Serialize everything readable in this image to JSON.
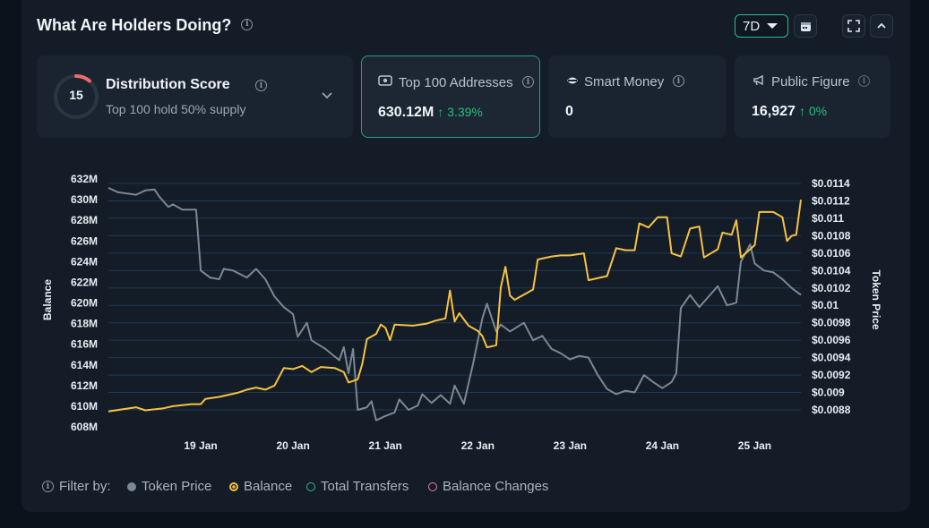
{
  "header": {
    "title": "What Are Holders Doing?",
    "range": "7D"
  },
  "cards": {
    "distribution": {
      "score": "15",
      "title": "Distribution Score",
      "subtitle": "Top 100 hold 50% supply"
    },
    "top100": {
      "label": "Top 100 Addresses",
      "value": "630.12M",
      "change": "3.39%"
    },
    "smart_money": {
      "label": "Smart Money",
      "value": "0"
    },
    "public_figure": {
      "label": "Public Figure",
      "value": "16,927",
      "change": "0%"
    }
  },
  "filters": {
    "label": "Filter by:",
    "items": [
      {
        "label": "Token Price",
        "color": "#7b8794"
      },
      {
        "label": "Balance",
        "color": "#f5c242"
      },
      {
        "label": "Total Transfers",
        "color": "#2fb89a"
      },
      {
        "label": "Balance Changes",
        "color": "#e879a8"
      }
    ]
  },
  "chart_data": {
    "type": "line",
    "x_tick_labels": [
      "19 Jan",
      "20 Jan",
      "21 Jan",
      "22 Jan",
      "23 Jan",
      "24 Jan",
      "25 Jan"
    ],
    "x_range_days": [
      18.0,
      25.5
    ],
    "left_axis": {
      "label": "Balance",
      "ticks": [
        "632M",
        "630M",
        "628M",
        "626M",
        "624M",
        "622M",
        "620M",
        "618M",
        "616M",
        "614M",
        "612M",
        "610M",
        "608M"
      ],
      "range": [
        608,
        632
      ]
    },
    "right_axis": {
      "label": "Token Price",
      "ticks": [
        "$0.0114",
        "$0.0112",
        "$0.011",
        "$0.0108",
        "$0.0106",
        "$0.0104",
        "$0.0102",
        "$0.01",
        "$0.0098",
        "$0.0096",
        "$0.0094",
        "$0.0092",
        "$0.009",
        "$0.0088"
      ],
      "range": [
        0.0088,
        0.0114
      ]
    },
    "series": [
      {
        "name": "Balance",
        "axis": "left",
        "color": "#f5c242",
        "points": [
          [
            18.0,
            609.5
          ],
          [
            18.3,
            609.9
          ],
          [
            18.4,
            609.6
          ],
          [
            18.6,
            609.8
          ],
          [
            18.7,
            610.0
          ],
          [
            18.9,
            610.2
          ],
          [
            19.0,
            610.2
          ],
          [
            19.05,
            610.7
          ],
          [
            19.2,
            610.9
          ],
          [
            19.4,
            611.3
          ],
          [
            19.5,
            611.6
          ],
          [
            19.6,
            611.8
          ],
          [
            19.7,
            611.6
          ],
          [
            19.8,
            612.0
          ],
          [
            19.9,
            613.7
          ],
          [
            20.0,
            613.6
          ],
          [
            20.1,
            613.9
          ],
          [
            20.2,
            613.3
          ],
          [
            20.3,
            613.8
          ],
          [
            20.45,
            613.7
          ],
          [
            20.55,
            613.3
          ],
          [
            20.6,
            612.3
          ],
          [
            20.7,
            612.6
          ],
          [
            20.75,
            614.1
          ],
          [
            20.8,
            616.5
          ],
          [
            20.9,
            617.0
          ],
          [
            20.95,
            617.9
          ],
          [
            21.0,
            617.6
          ],
          [
            21.05,
            616.4
          ],
          [
            21.1,
            617.9
          ],
          [
            21.3,
            617.8
          ],
          [
            21.45,
            618.0
          ],
          [
            21.55,
            618.3
          ],
          [
            21.65,
            618.5
          ],
          [
            21.7,
            621.2
          ],
          [
            21.75,
            618.2
          ],
          [
            21.8,
            619.0
          ],
          [
            21.9,
            617.8
          ],
          [
            22.0,
            617.3
          ],
          [
            22.05,
            616.8
          ],
          [
            22.1,
            615.7
          ],
          [
            22.2,
            615.9
          ],
          [
            22.25,
            621.5
          ],
          [
            22.3,
            623.5
          ],
          [
            22.35,
            620.7
          ],
          [
            22.4,
            620.3
          ],
          [
            22.5,
            620.8
          ],
          [
            22.6,
            621.3
          ],
          [
            22.65,
            624.2
          ],
          [
            22.8,
            624.5
          ],
          [
            22.9,
            624.6
          ],
          [
            23.0,
            624.6
          ],
          [
            23.15,
            624.8
          ],
          [
            23.2,
            622.2
          ],
          [
            23.4,
            622.6
          ],
          [
            23.5,
            625.3
          ],
          [
            23.6,
            625.1
          ],
          [
            23.7,
            625.1
          ],
          [
            23.75,
            627.7
          ],
          [
            23.85,
            627.3
          ],
          [
            23.95,
            628.3
          ],
          [
            24.05,
            628.3
          ],
          [
            24.1,
            624.8
          ],
          [
            24.2,
            624.5
          ],
          [
            24.3,
            627.2
          ],
          [
            24.4,
            627.4
          ],
          [
            24.45,
            624.4
          ],
          [
            24.6,
            625.2
          ],
          [
            24.65,
            626.8
          ],
          [
            24.75,
            626.6
          ],
          [
            24.8,
            628.0
          ],
          [
            24.85,
            624.4
          ],
          [
            25.0,
            625.6
          ],
          [
            25.05,
            628.8
          ],
          [
            25.2,
            628.8
          ],
          [
            25.3,
            628.3
          ],
          [
            25.35,
            626.0
          ],
          [
            25.4,
            626.5
          ],
          [
            25.45,
            626.6
          ],
          [
            25.5,
            630.0
          ]
        ]
      },
      {
        "name": "Token Price",
        "axis": "right",
        "color": "#7b8794",
        "points": [
          [
            18.0,
            0.01135
          ],
          [
            18.1,
            0.0113
          ],
          [
            18.3,
            0.01127
          ],
          [
            18.4,
            0.01132
          ],
          [
            18.5,
            0.01133
          ],
          [
            18.55,
            0.01125
          ],
          [
            18.65,
            0.01113
          ],
          [
            18.7,
            0.01116
          ],
          [
            18.8,
            0.0111
          ],
          [
            18.95,
            0.0111
          ],
          [
            19.0,
            0.0104
          ],
          [
            19.1,
            0.01032
          ],
          [
            19.2,
            0.0103
          ],
          [
            19.25,
            0.01042
          ],
          [
            19.35,
            0.0104
          ],
          [
            19.5,
            0.01032
          ],
          [
            19.6,
            0.01042
          ],
          [
            19.7,
            0.0103
          ],
          [
            19.8,
            0.0101
          ],
          [
            19.9,
            0.00998
          ],
          [
            20.0,
            0.0099
          ],
          [
            20.05,
            0.00964
          ],
          [
            20.15,
            0.0098
          ],
          [
            20.2,
            0.0096
          ],
          [
            20.35,
            0.0095
          ],
          [
            20.5,
            0.00937
          ],
          [
            20.55,
            0.00952
          ],
          [
            20.6,
            0.00922
          ],
          [
            20.65,
            0.0095
          ],
          [
            20.7,
            0.0088
          ],
          [
            20.8,
            0.00883
          ],
          [
            20.85,
            0.0089
          ],
          [
            20.9,
            0.00868
          ],
          [
            21.0,
            0.00873
          ],
          [
            21.1,
            0.00877
          ],
          [
            21.15,
            0.00892
          ],
          [
            21.25,
            0.0088
          ],
          [
            21.35,
            0.00885
          ],
          [
            21.4,
            0.00898
          ],
          [
            21.5,
            0.00888
          ],
          [
            21.6,
            0.00897
          ],
          [
            21.7,
            0.00887
          ],
          [
            21.75,
            0.00908
          ],
          [
            21.85,
            0.00887
          ],
          [
            21.95,
            0.00933
          ],
          [
            22.05,
            0.00985
          ],
          [
            22.1,
            0.01002
          ],
          [
            22.2,
            0.0097
          ],
          [
            22.25,
            0.00978
          ],
          [
            22.35,
            0.0097
          ],
          [
            22.5,
            0.0098
          ],
          [
            22.6,
            0.0096
          ],
          [
            22.7,
            0.00965
          ],
          [
            22.8,
            0.0095
          ],
          [
            22.9,
            0.00945
          ],
          [
            23.0,
            0.00938
          ],
          [
            23.1,
            0.00942
          ],
          [
            23.2,
            0.0094
          ],
          [
            23.3,
            0.0092
          ],
          [
            23.4,
            0.00904
          ],
          [
            23.5,
            0.00898
          ],
          [
            23.6,
            0.00902
          ],
          [
            23.7,
            0.009
          ],
          [
            23.8,
            0.0092
          ],
          [
            23.9,
            0.00912
          ],
          [
            24.0,
            0.00905
          ],
          [
            24.1,
            0.00912
          ],
          [
            24.15,
            0.00922
          ],
          [
            24.2,
            0.00997
          ],
          [
            24.3,
            0.01012
          ],
          [
            24.4,
            0.00998
          ],
          [
            24.5,
            0.0101
          ],
          [
            24.6,
            0.01022
          ],
          [
            24.7,
            0.01
          ],
          [
            24.8,
            0.01003
          ],
          [
            24.85,
            0.0105
          ],
          [
            24.9,
            0.0106
          ],
          [
            24.95,
            0.0107
          ],
          [
            25.0,
            0.01048
          ],
          [
            25.1,
            0.0104
          ],
          [
            25.2,
            0.01038
          ],
          [
            25.3,
            0.0103
          ],
          [
            25.4,
            0.0102
          ],
          [
            25.5,
            0.01012
          ]
        ]
      }
    ],
    "grid": true
  }
}
